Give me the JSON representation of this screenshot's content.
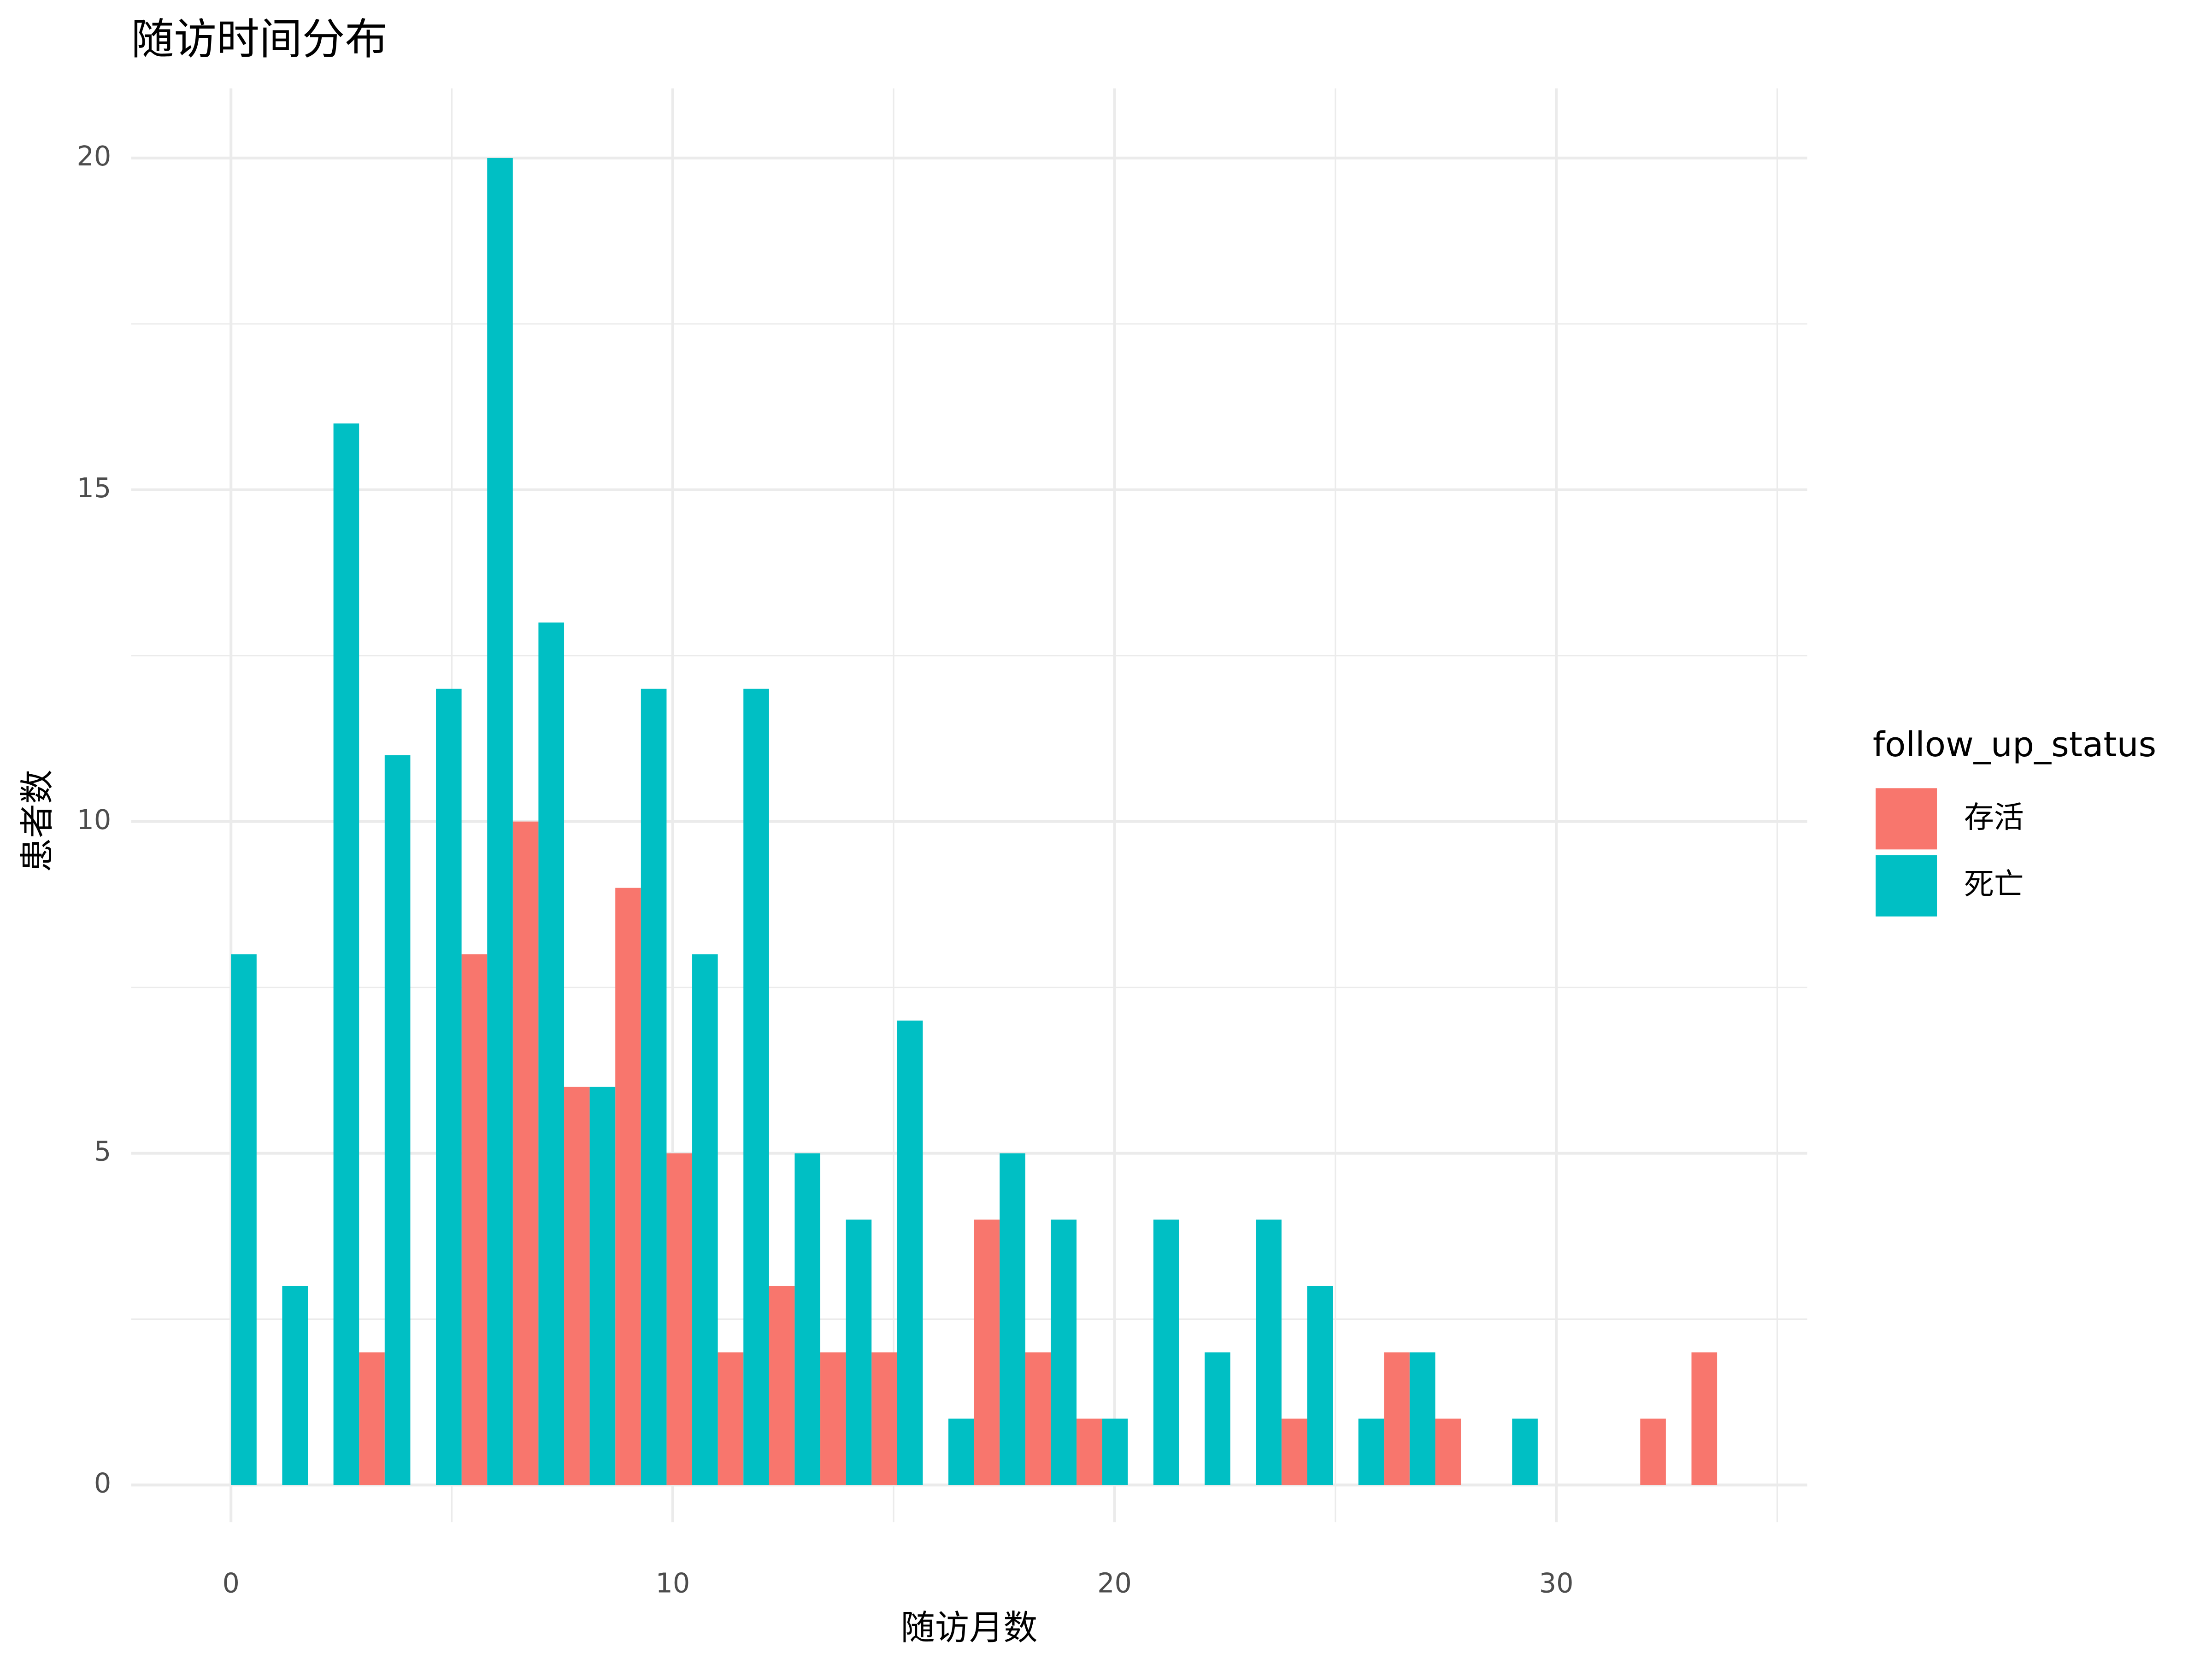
{
  "chart_data": {
    "type": "histogram",
    "title": "随访时间分布",
    "x_label": "随访月数",
    "y_label": "患者数",
    "bins": [
      -0.58,
      0.58,
      1.74,
      2.9,
      4.06,
      5.22,
      6.38,
      7.54,
      8.7,
      9.86,
      11.02,
      12.18,
      13.34,
      14.5,
      15.66,
      16.82,
      17.98,
      19.14,
      20.3,
      21.46,
      22.62,
      23.78,
      24.94,
      26.1,
      27.26,
      28.42,
      29.58,
      30.74,
      31.9,
      33.06,
      34.22
    ],
    "series": [
      {
        "name": "存活",
        "color": "#F8766D",
        "values": [
          0,
          0,
          0,
          2,
          0,
          8,
          10,
          6,
          9,
          5,
          2,
          3,
          2,
          2,
          0,
          4,
          2,
          1,
          0,
          0,
          0,
          1,
          0,
          2,
          1,
          0,
          0,
          0,
          1,
          2
        ]
      },
      {
        "name": "死亡",
        "color": "#00BFC4",
        "values": [
          8,
          3,
          16,
          11,
          12,
          20,
          13,
          6,
          12,
          8,
          12,
          5,
          4,
          7,
          1,
          5,
          4,
          1,
          4,
          2,
          4,
          3,
          1,
          2,
          0,
          1,
          0,
          0,
          0,
          0
        ]
      }
    ],
    "legend_title": "follow_up_status",
    "legend_position": "right",
    "position": "dodge",
    "xlim": [
      -2.26,
      35.68
    ],
    "ylim": [
      -0.56,
      21.05
    ],
    "xticks": [
      0,
      10,
      20,
      30
    ],
    "yticks": [
      0,
      5,
      10,
      15,
      20
    ],
    "x_minor_ticks": [
      5,
      15,
      25,
      35
    ],
    "y_minor_ticks": [
      2.5,
      7.5,
      12.5,
      17.5
    ],
    "grid": true
  }
}
